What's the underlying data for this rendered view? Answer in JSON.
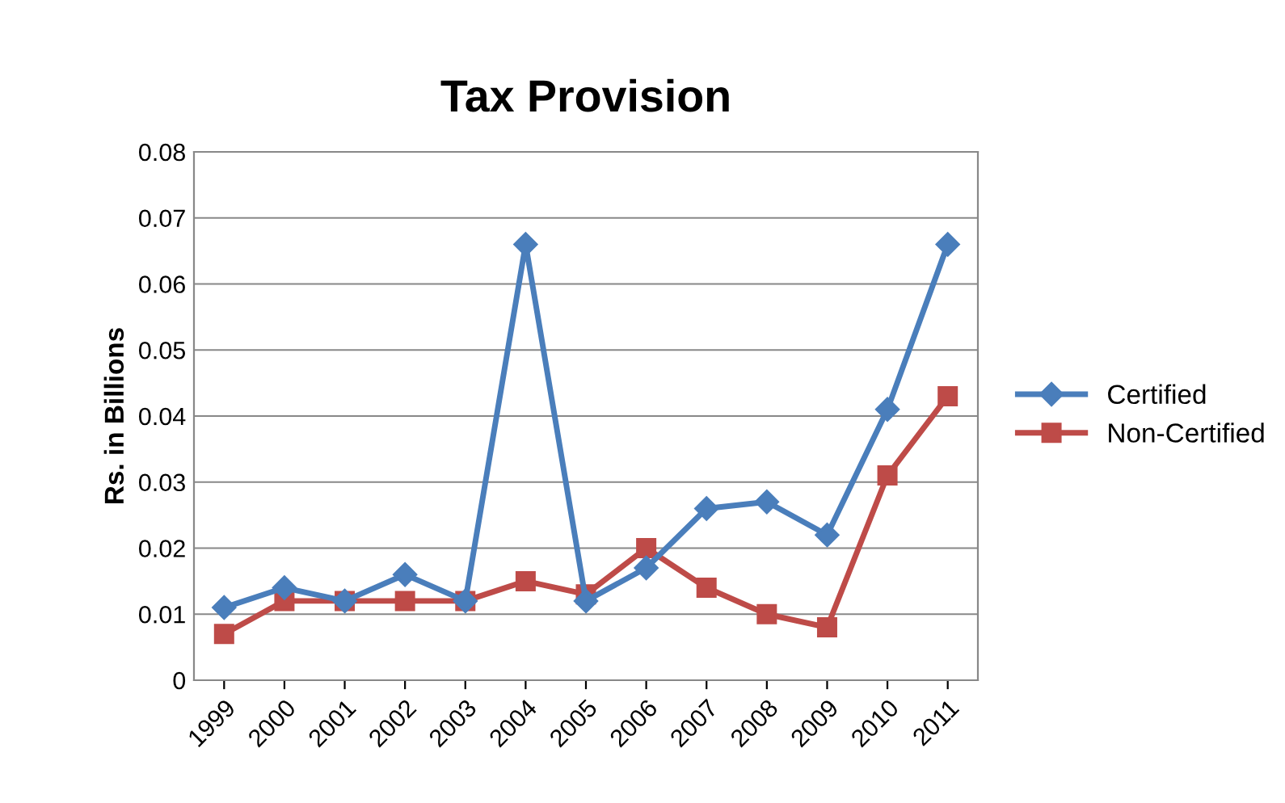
{
  "chart_data": {
    "type": "line",
    "title": "Tax Provision",
    "ylabel": "Rs. in Billions",
    "categories": [
      "1999",
      "2000",
      "2001",
      "2002",
      "2003",
      "2004",
      "2005",
      "2006",
      "2007",
      "2008",
      "2009",
      "2010",
      "2011"
    ],
    "series": [
      {
        "name": "Certified",
        "color": "#4a7ebb",
        "marker": "diamond",
        "values": [
          0.011,
          0.014,
          0.012,
          0.016,
          0.012,
          0.066,
          0.012,
          0.017,
          0.026,
          0.027,
          0.022,
          0.041,
          0.066
        ]
      },
      {
        "name": "Non-Certified",
        "color": "#be4b48",
        "marker": "square",
        "values": [
          0.007,
          0.012,
          0.012,
          0.012,
          0.012,
          0.015,
          0.013,
          0.02,
          0.014,
          0.01,
          0.008,
          0.031,
          0.043
        ]
      }
    ],
    "ylim": [
      0,
      0.08
    ],
    "yticks": [
      0,
      0.01,
      0.02,
      0.03,
      0.04,
      0.05,
      0.06,
      0.07,
      0.08
    ],
    "grid": "y",
    "legend": "right",
    "line_style": "solid"
  }
}
